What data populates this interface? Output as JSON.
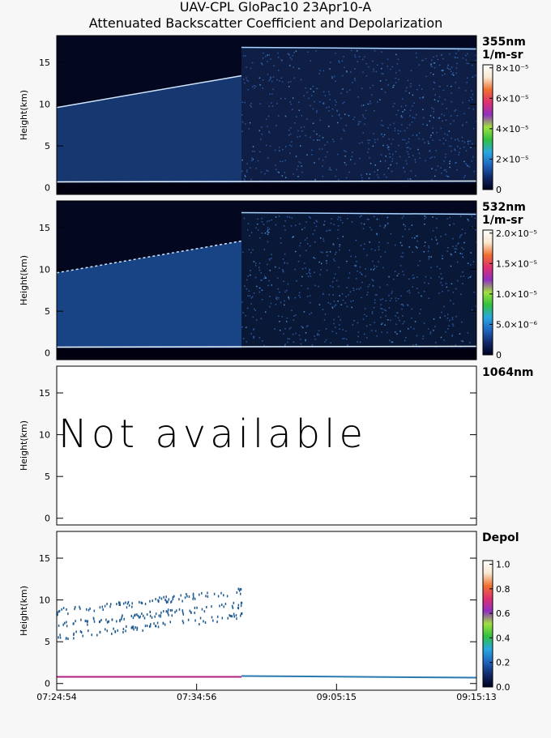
{
  "header": {
    "title": "UAV-CPL GloPac10 23Apr10-A",
    "subtitle": "Attenuated Backscatter Coefficient and Depolarization"
  },
  "chart_data": [
    {
      "type": "curtain",
      "label": "355nm",
      "units": "1/m-sr",
      "ylabel": "Height(km)",
      "ylim": [
        -0.8,
        18.2
      ],
      "yticks": [
        0,
        5,
        10,
        15
      ],
      "clim": [
        0,
        8.2e-05
      ],
      "cticks": [
        0,
        {
          "value": 2e-05,
          "label": "2×10⁻⁵"
        },
        {
          "value": 4e-05,
          "label": "4×10⁻⁵"
        },
        {
          "value": 6e-05,
          "label": "6×10⁻⁵"
        },
        {
          "value": 8e-05,
          "label": "8×10⁻⁵"
        }
      ],
      "colormap": [
        "#000020",
        "#102a6a",
        "#1f66c0",
        "#2aa8e0",
        "#30c040",
        "#a0e040",
        "#9030c0",
        "#e03070",
        "#f07030",
        "#f8e8d0",
        "#ffffff"
      ]
    },
    {
      "type": "curtain",
      "label": "532nm",
      "units": "1/m-sr",
      "ylabel": "Height(km)",
      "ylim": [
        -0.8,
        18.2
      ],
      "yticks": [
        0,
        5,
        10,
        15
      ],
      "clim": [
        0,
        2.05e-05
      ],
      "cticks": [
        0,
        {
          "value": 5e-06,
          "label": "5.0×10⁻⁶"
        },
        {
          "value": 1e-05,
          "label": "1.0×10⁻⁵"
        },
        {
          "value": 1.5e-05,
          "label": "1.5×10⁻⁵"
        },
        {
          "value": 2e-05,
          "label": "2.0×10⁻⁵"
        }
      ],
      "colormap": [
        "#000020",
        "#102a6a",
        "#1f66c0",
        "#2aa8e0",
        "#30c040",
        "#a0e040",
        "#9030c0",
        "#e03070",
        "#f07030",
        "#f8e8d0",
        "#ffffff"
      ]
    },
    {
      "type": "empty",
      "label": "1064nm",
      "ylabel": "Height(km)",
      "ylim": [
        -0.8,
        18.2
      ],
      "yticks": [
        0,
        5,
        10,
        15
      ],
      "annotation": "Not available"
    },
    {
      "type": "depol",
      "label": "Depol",
      "ylabel": "Height(km)",
      "ylim": [
        -0.8,
        18.2
      ],
      "yticks": [
        0,
        5,
        10,
        15
      ],
      "clim": [
        0,
        1.03
      ],
      "cticks": [
        {
          "value": 0,
          "label": "0.0"
        },
        0.2,
        0.4,
        0.6,
        0.8,
        {
          "value": 1,
          "label": "1.0"
        }
      ],
      "colormap": [
        "#000020",
        "#102a6a",
        "#1f66c0",
        "#2aa8e0",
        "#30c040",
        "#a0e040",
        "#9030c0",
        "#e03070",
        "#f07030",
        "#f8e8d0",
        "#ffffff"
      ],
      "categories": [
        "07:24:54",
        "07:34:56",
        "09:05:15",
        "09:15:13"
      ]
    }
  ]
}
